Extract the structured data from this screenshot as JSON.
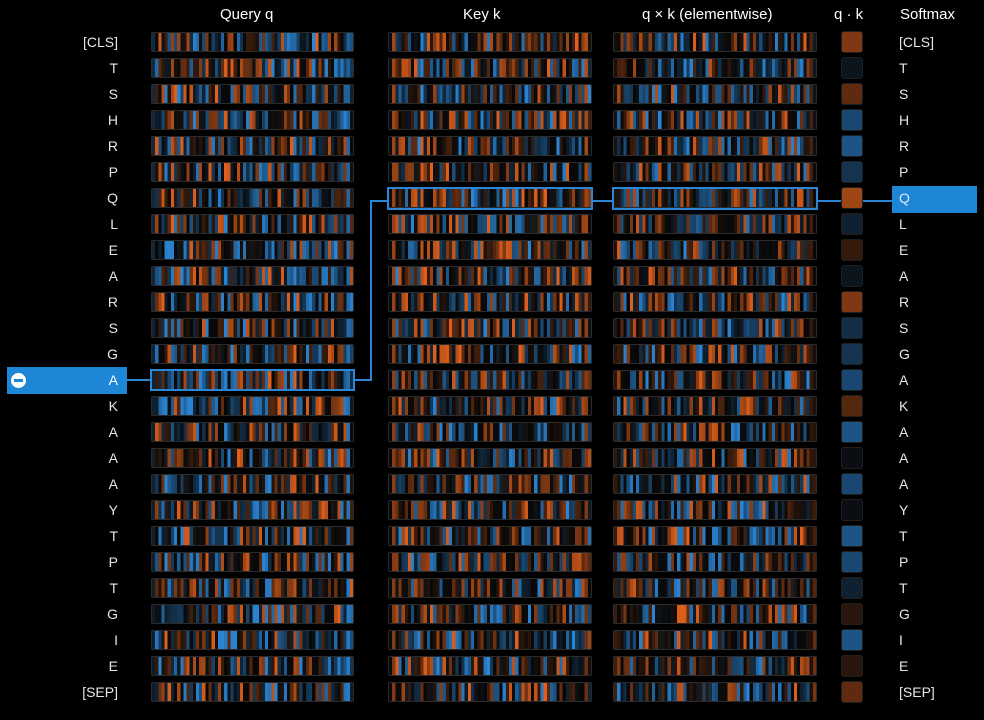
{
  "headers": {
    "query": "Query q",
    "key": "Key k",
    "product": "q × k (elementwise)",
    "dot": "q · k",
    "softmax": "Softmax"
  },
  "tokens": [
    "[CLS]",
    "T",
    "S",
    "H",
    "R",
    "P",
    "Q",
    "L",
    "E",
    "A",
    "R",
    "S",
    "G",
    "A",
    "K",
    "A",
    "A",
    "A",
    "Y",
    "T",
    "P",
    "T",
    "G",
    "I",
    "E",
    "[SEP]"
  ],
  "selected_query_index": 13,
  "selected_key_index": 6,
  "colors": {
    "accent": "#1d86d6",
    "positive": "#e0601c",
    "negative": "#2b86d6",
    "background": "#000000"
  },
  "icons": {
    "deselect": "minus-circle-icon"
  },
  "dot_products": [
    0.55,
    -0.1,
    0.4,
    -0.5,
    -0.6,
    -0.35,
    0.7,
    -0.2,
    0.2,
    -0.1,
    0.55,
    -0.3,
    -0.35,
    -0.5,
    0.35,
    -0.6,
    -0.05,
    -0.5,
    -0.05,
    -0.6,
    -0.5,
    -0.2,
    0.15,
    -0.6,
    0.15,
    0.4
  ]
}
